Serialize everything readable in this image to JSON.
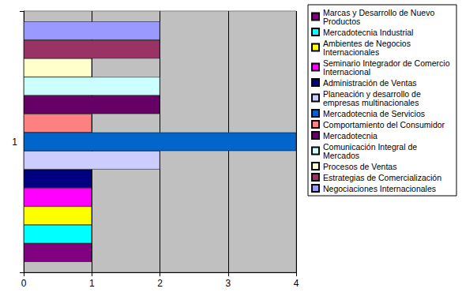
{
  "chart_data": {
    "type": "bar",
    "orientation": "horizontal",
    "categories": [
      "1"
    ],
    "series": [
      {
        "name": "Marcas y Desarrollo de Nuevo Productos",
        "color": "#800080",
        "values": [
          1
        ]
      },
      {
        "name": "Mercadotecnia Industrial",
        "color": "#00FFFF",
        "values": [
          1
        ]
      },
      {
        "name": "Ambientes de Negocios Internacionales",
        "color": "#FFFF00",
        "values": [
          1
        ]
      },
      {
        "name": "Seminario Integrador de Comercio Internacional",
        "color": "#FF00FF",
        "values": [
          1
        ]
      },
      {
        "name": "Administración de Ventas",
        "color": "#000080",
        "values": [
          1
        ]
      },
      {
        "name": "Planeación y desarrollo de empresas multinacionales",
        "color": "#CCCCFF",
        "values": [
          2
        ]
      },
      {
        "name": "Mercadotecnia de Servicios",
        "color": "#0066CC",
        "values": [
          4
        ]
      },
      {
        "name": "Comportamiento del Consumidor",
        "color": "#FF8080",
        "values": [
          1
        ]
      },
      {
        "name": "Mercadotecnia",
        "color": "#660066",
        "values": [
          2
        ]
      },
      {
        "name": "Comunicación Integral de Mercados",
        "color": "#CCFFFF",
        "values": [
          2
        ]
      },
      {
        "name": "Procesos de Ventas",
        "color": "#FFFFCC",
        "values": [
          1
        ]
      },
      {
        "name": "Estrategias de Comercialización",
        "color": "#993366",
        "values": [
          2
        ]
      },
      {
        "name": "Negociaciones Internacionales",
        "color": "#9999FF",
        "values": [
          2
        ]
      }
    ],
    "xlim": [
      0,
      4
    ],
    "xticks": [
      0,
      1,
      2,
      3,
      4
    ],
    "grid": true,
    "legend": "right"
  }
}
